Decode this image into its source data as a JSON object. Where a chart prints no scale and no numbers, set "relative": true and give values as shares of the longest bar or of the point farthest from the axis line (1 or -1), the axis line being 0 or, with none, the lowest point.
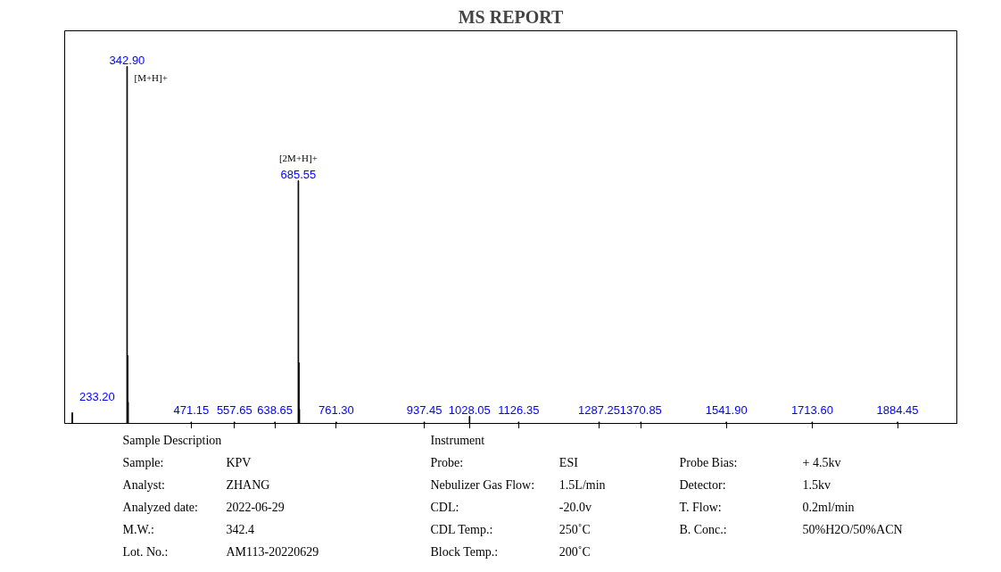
{
  "chart_data": {
    "type": "bar",
    "title": "MS REPORT",
    "relative": true,
    "tick_labels": "x",
    "grid": false,
    "xticks": [
      {
        "value": 471.15,
        "label": "471.15"
      },
      {
        "value": 557.65,
        "label": "557.65"
      },
      {
        "value": 638.65,
        "label": "638.65"
      },
      {
        "value": 761.3,
        "label": "761.30"
      },
      {
        "value": 937.45,
        "label": "937.45"
      },
      {
        "value": 1028.05,
        "label": "1028.05"
      },
      {
        "value": 1126.35,
        "label": "1126.35"
      },
      {
        "value": 1287.25,
        "label": "1287.25"
      },
      {
        "value": 1370.85,
        "label": "1370.85"
      },
      {
        "value": 1541.9,
        "label": "1541.90"
      },
      {
        "value": 1713.6,
        "label": "1713.60"
      },
      {
        "value": 1884.45,
        "label": "1884.45"
      }
    ],
    "x": [
      233.2,
      342.9,
      343.9,
      344.9,
      471.15,
      557.65,
      638.65,
      685.55,
      686.5,
      687.5,
      761.3,
      937.45,
      1028.05,
      1126.35,
      1287.25,
      1370.85,
      1541.9,
      1713.6,
      1884.45
    ],
    "values": [
      0.03,
      1,
      0.19,
      0.06,
      0.004,
      0.004,
      0.004,
      0.68,
      0.17,
      0.04,
      0.004,
      0.004,
      0.02,
      0.004,
      0.004,
      0.004,
      0.004,
      0.004,
      0.004
    ],
    "color": "#000000",
    "xlim": [
      218,
      2003
    ],
    "annotations": [
      {
        "text": "233.20",
        "x": 233.2,
        "y": 0.03
      },
      {
        "text": "342.90",
        "x": 342.9,
        "y": 1
      },
      {
        "text": "685.55",
        "x": 685.55,
        "y": 0.68
      },
      {
        "text": "[M+H]+",
        "x": 342.9,
        "y": 1
      },
      {
        "text": "[2M+H]+",
        "x": 685.55,
        "y": 0.68
      },
      "Sample Description",
      "Instrument",
      "Sample:",
      "KPV",
      "Probe:",
      "ESI",
      "Probe Bias:",
      "+ 4.5kv",
      "Analyst:",
      "ZHANG",
      "Nebulizer Gas Flow:",
      "1.5L/min",
      "Detector:",
      "1.5kv",
      "Analyzed date:",
      "2022-06-29",
      "CDL:",
      "-20.0v",
      "T. Flow:",
      "0.2ml/min",
      "M.W.:",
      "342.4",
      "CDL Temp.:",
      "250˚C",
      "B. Conc.:",
      "50%H2O/50%ACN",
      "Lot. No.:",
      "AM113-20220629",
      "Block Temp.:",
      "200˚C"
    ]
  }
}
